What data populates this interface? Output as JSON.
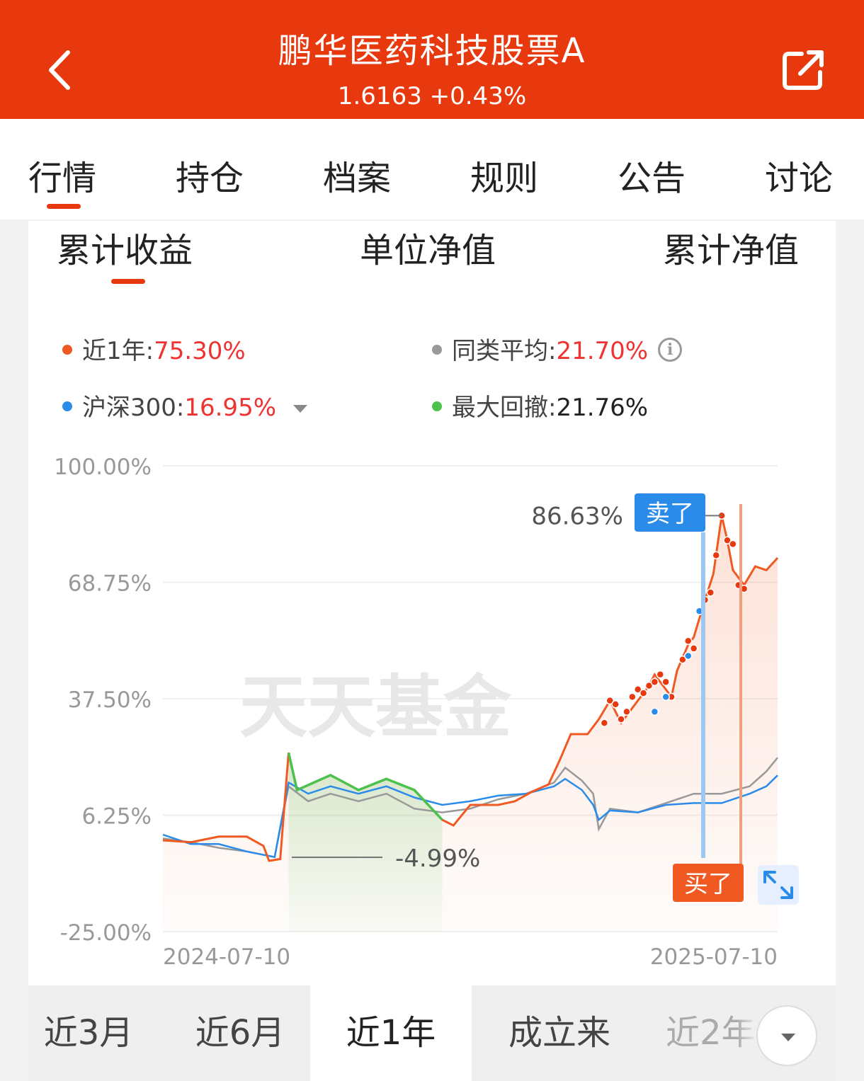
{
  "header": {
    "title": "鹏华医药科技股票A",
    "subtitle": "1.6163 +0.43%",
    "color": "#e8380d"
  },
  "tabs": [
    "行情",
    "持仓",
    "档案",
    "规则",
    "公告",
    "讨论"
  ],
  "subtabs": [
    "累计收益",
    "单位净值",
    "累计净值"
  ],
  "legend": {
    "fund": {
      "label": "近1年:",
      "value": "75.30%",
      "color": "#f05a22"
    },
    "category_avg": {
      "label": "同类平均:",
      "value": "21.70%",
      "color": "#999999"
    },
    "index": {
      "label": "沪深300:",
      "value": "16.95%",
      "color": "#2a8ce8"
    },
    "max_drawdown": {
      "label": "最大回撤:",
      "value": "21.76%",
      "color": "#4cc24c"
    }
  },
  "chart_labels": {
    "sell_tag": "卖了",
    "buy_tag": "买了",
    "peak_value": "86.63%",
    "drawdown_value": "-4.99%",
    "watermark": "天天基金",
    "expand_icon": "expand-icon"
  },
  "chart_data": {
    "type": "line",
    "yticks": [
      "100.00%",
      "68.75%",
      "37.50%",
      "6.25%",
      "-25.00%"
    ],
    "ylim": [
      -25,
      100
    ],
    "xticks": [
      "2024-07-10",
      "2025-07-10"
    ],
    "grid": true,
    "series": [
      {
        "name": "近1年",
        "color": "#f05a22",
        "points": [
          [
            0,
            -0.5
          ],
          [
            0.05,
            -1
          ],
          [
            0.1,
            0.5
          ],
          [
            0.15,
            0.5
          ],
          [
            0.18,
            -2
          ],
          [
            0.19,
            -6
          ],
          [
            0.21,
            -5.5
          ],
          [
            0.225,
            23
          ],
          [
            0.24,
            13
          ],
          [
            0.3,
            17
          ],
          [
            0.35,
            13
          ],
          [
            0.4,
            16
          ],
          [
            0.45,
            13
          ],
          [
            0.5,
            5
          ],
          [
            0.52,
            3.5
          ],
          [
            0.55,
            9
          ],
          [
            0.6,
            9
          ],
          [
            0.63,
            10
          ],
          [
            0.66,
            12.5
          ],
          [
            0.69,
            14.5
          ],
          [
            0.71,
            21
          ],
          [
            0.73,
            28
          ],
          [
            0.76,
            28
          ],
          [
            0.78,
            32
          ],
          [
            0.8,
            37
          ],
          [
            0.82,
            31
          ],
          [
            0.85,
            37
          ],
          [
            0.87,
            41
          ],
          [
            0.88,
            44
          ],
          [
            0.91,
            38
          ],
          [
            0.92,
            45
          ],
          [
            0.94,
            52
          ],
          [
            0.95,
            54
          ],
          [
            0.97,
            64
          ],
          [
            0.985,
            71
          ],
          [
            1.0,
            86.63
          ],
          [
            1.01,
            80
          ],
          [
            1.02,
            72
          ],
          [
            1.04,
            68
          ],
          [
            1.06,
            73
          ],
          [
            1.08,
            72
          ],
          [
            1.1,
            75.3
          ]
        ]
      },
      {
        "name": "同类平均",
        "color": "#999999",
        "points": [
          [
            0,
            0
          ],
          [
            0.05,
            -1
          ],
          [
            0.1,
            -2.5
          ],
          [
            0.15,
            -3.5
          ],
          [
            0.2,
            -5
          ],
          [
            0.225,
            14
          ],
          [
            0.26,
            10
          ],
          [
            0.3,
            12
          ],
          [
            0.35,
            10
          ],
          [
            0.4,
            12
          ],
          [
            0.45,
            8
          ],
          [
            0.5,
            7
          ],
          [
            0.55,
            8
          ],
          [
            0.6,
            10.5
          ],
          [
            0.65,
            12
          ],
          [
            0.7,
            15
          ],
          [
            0.72,
            19
          ],
          [
            0.75,
            15.5
          ],
          [
            0.77,
            12
          ],
          [
            0.78,
            2.5
          ],
          [
            0.8,
            8
          ],
          [
            0.85,
            7
          ],
          [
            0.9,
            9.5
          ],
          [
            0.95,
            12
          ],
          [
            1.0,
            12
          ],
          [
            1.05,
            14
          ],
          [
            1.08,
            18
          ],
          [
            1.1,
            21.7
          ]
        ]
      },
      {
        "name": "沪深300",
        "color": "#2a8ce8",
        "points": [
          [
            0,
            1
          ],
          [
            0.05,
            -1.5
          ],
          [
            0.1,
            -1.5
          ],
          [
            0.15,
            -3.5
          ],
          [
            0.2,
            -5
          ],
          [
            0.225,
            15
          ],
          [
            0.26,
            12
          ],
          [
            0.3,
            14
          ],
          [
            0.35,
            12
          ],
          [
            0.4,
            14
          ],
          [
            0.45,
            11
          ],
          [
            0.5,
            9
          ],
          [
            0.55,
            10
          ],
          [
            0.6,
            11.5
          ],
          [
            0.65,
            12
          ],
          [
            0.7,
            14
          ],
          [
            0.72,
            16
          ],
          [
            0.75,
            13
          ],
          [
            0.77,
            9
          ],
          [
            0.78,
            5
          ],
          [
            0.8,
            7.5
          ],
          [
            0.85,
            7
          ],
          [
            0.9,
            9
          ],
          [
            0.95,
            9.5
          ],
          [
            1.0,
            9.5
          ],
          [
            1.05,
            12
          ],
          [
            1.08,
            14
          ],
          [
            1.1,
            16.95
          ]
        ]
      }
    ],
    "max_drawdown": {
      "name": "最大回撤",
      "value": "21.76%",
      "color": "#4cc24c"
    }
  },
  "bottom_ranges": [
    "近3月",
    "近6月",
    "近1年",
    "成立来",
    "近2年"
  ],
  "active_range": "近1年"
}
